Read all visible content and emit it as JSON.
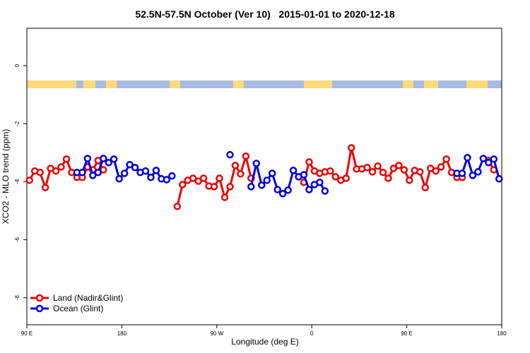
{
  "chart_data": {
    "type": "line",
    "title": "52.5N-57.5N October (Ver 10)   2015-01-01 to 2020-12-18",
    "x_label": "Longitude (deg E)",
    "y_label": "XCO2 - MLO trend (ppm)",
    "legend": "bottom-left",
    "xlim": [
      90,
      540
    ],
    "xticks": [
      {
        "value": 90,
        "label": "90 E"
      },
      180,
      {
        "value": 270,
        "label": "90 W"
      },
      {
        "value": 360,
        "label": "0"
      },
      {
        "value": 450,
        "label": "90 E"
      },
      180
    ],
    "ylim": [
      -8.93,
      1.29
    ],
    "yticks": [
      0,
      -2,
      -4,
      -6,
      -8
    ],
    "x": [
      92.5,
      97.5,
      102.5,
      107.5,
      112.5,
      117.5,
      122.5,
      127.5,
      132.5,
      137.5,
      142.5,
      147.5,
      152.5,
      157.5,
      162.5,
      167.5,
      172.5,
      177.5,
      182.5,
      187.5,
      192.5,
      197.5,
      202.5,
      207.5,
      212.5,
      217.5,
      222.5,
      227.5,
      232.5,
      237.5,
      242.5,
      247.5,
      252.5,
      257.5,
      262.5,
      267.5,
      272.5,
      277.5,
      282.5,
      287.5,
      292.5,
      297.5,
      302.5,
      307.5,
      312.5,
      317.5,
      322.5,
      327.5,
      332.5,
      337.5,
      342.5,
      347.5,
      352.5,
      357.5,
      362.5,
      367.5,
      372.5,
      377.5,
      382.5,
      387.5,
      392.5,
      397.5,
      402.5,
      407.5,
      412.5,
      417.5,
      422.5,
      427.5,
      432.5,
      437.5,
      442.5,
      447.5,
      452.5,
      457.5,
      462.5,
      467.5,
      472.5,
      477.5,
      482.5,
      487.5,
      492.5,
      497.5,
      502.5,
      507.5,
      512.5,
      517.5,
      522.5,
      527.5,
      532.5,
      537.5
    ],
    "series": [
      {
        "name": "Land (Nadir&Glint)",
        "color": "#ee0000",
        "values": [
          -3.95,
          -3.63,
          -3.68,
          -4.2,
          -3.54,
          -3.63,
          -3.49,
          -3.22,
          -3.68,
          -3.85,
          -3.85,
          -3.49,
          -3.59,
          -3.27,
          -3.59,
          null,
          null,
          null,
          null,
          null,
          null,
          null,
          null,
          null,
          null,
          null,
          null,
          null,
          -4.85,
          -4.1,
          -3.95,
          -3.88,
          -3.98,
          -3.88,
          -4.15,
          -4.17,
          -3.88,
          -4.54,
          -4.17,
          -3.44,
          -3.73,
          -3.12,
          -3.88,
          null,
          null,
          null,
          null,
          null,
          null,
          null,
          null,
          null,
          -4.02,
          -3.32,
          -3.63,
          -3.71,
          -3.66,
          -3.63,
          -3.83,
          -3.95,
          -3.88,
          -2.83,
          -3.56,
          -3.56,
          -3.51,
          -3.66,
          -3.46,
          -3.68,
          -3.88,
          -3.54,
          -3.44,
          -3.59,
          -3.95,
          -3.61,
          -3.66,
          -4.2,
          -3.54,
          -3.63,
          -3.49,
          -3.22,
          -3.68,
          -3.85,
          -3.85,
          null,
          null,
          null,
          null,
          -3.27,
          -3.59,
          null
        ]
      },
      {
        "name": "Ocean (Glint)",
        "color": "#0000dd",
        "values": [
          null,
          null,
          null,
          null,
          null,
          null,
          null,
          null,
          null,
          -3.68,
          -3.68,
          -3.2,
          -3.78,
          -3.68,
          -3.2,
          -3.34,
          -3.22,
          -3.9,
          -3.71,
          -3.41,
          -3.51,
          -3.68,
          -3.63,
          -3.85,
          -3.61,
          -3.9,
          -3.93,
          -3.8,
          null,
          null,
          null,
          null,
          null,
          null,
          null,
          null,
          null,
          null,
          -3.07,
          null,
          null,
          null,
          -4.17,
          -3.37,
          -4.12,
          -3.95,
          -3.71,
          -4.27,
          -4.41,
          -4.29,
          -3.61,
          -3.83,
          -3.76,
          -4.27,
          -4.1,
          -4.02,
          -4.32,
          null,
          null,
          null,
          null,
          null,
          null,
          null,
          null,
          null,
          null,
          null,
          null,
          null,
          null,
          null,
          null,
          null,
          null,
          null,
          null,
          null,
          null,
          null,
          null,
          -3.71,
          -3.71,
          -3.17,
          -3.78,
          -3.66,
          -3.2,
          -3.34,
          -3.22,
          -3.9
        ]
      }
    ]
  }
}
